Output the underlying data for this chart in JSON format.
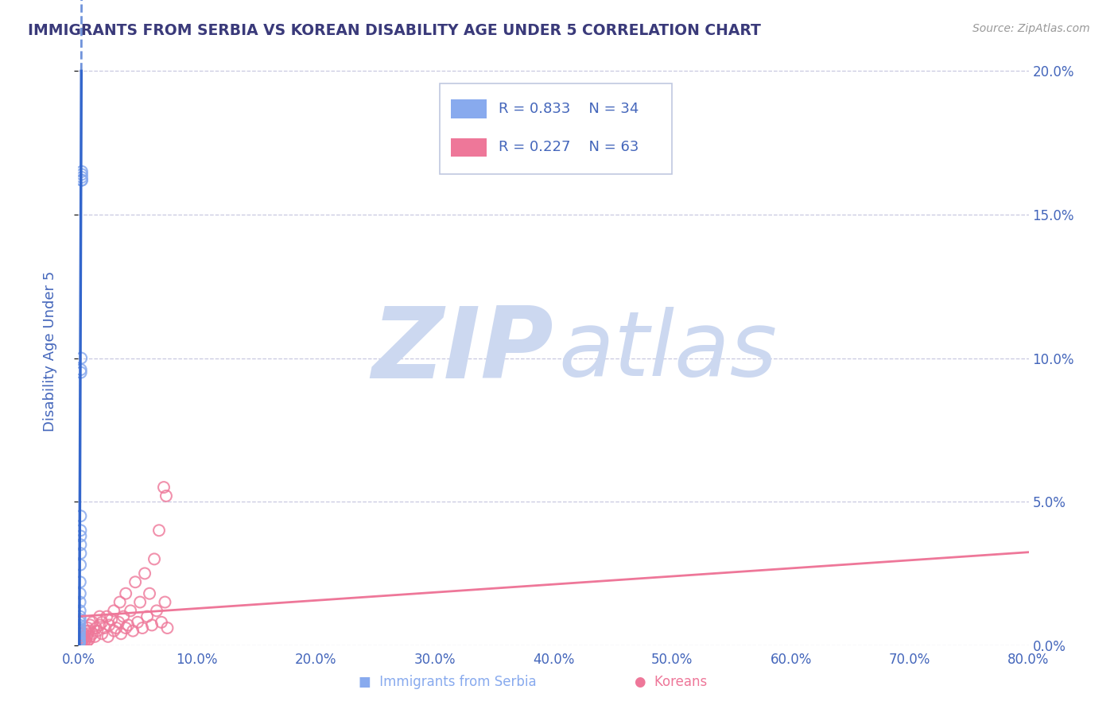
{
  "title": "IMMIGRANTS FROM SERBIA VS KOREAN DISABILITY AGE UNDER 5 CORRELATION CHART",
  "source": "Source: ZipAtlas.com",
  "ylabel": "Disability Age Under 5",
  "background_color": "#ffffff",
  "title_color": "#3a3a7a",
  "axis_color": "#4466bb",
  "grid_color": "#c8c8e0",
  "watermark_zip_color": "#ccd8f0",
  "watermark_atlas_color": "#ccd8f0",
  "serbia_R": "0.833",
  "serbia_N": "34",
  "korea_R": "0.227",
  "korea_N": "63",
  "serbia_scatter_color": "#88aaee",
  "korea_scatter_color": "#ee7799",
  "serbia_line_color": "#3366cc",
  "korea_line_color": "#ee7799",
  "legend_label_color": "#4466bb",
  "legend_bg": "#ffffff",
  "legend_border": "#c0c8e0",
  "source_color": "#999999",
  "xlim": [
    0.0,
    0.8
  ],
  "ylim": [
    0.0,
    0.205
  ],
  "xticks": [
    0.0,
    0.1,
    0.2,
    0.3,
    0.4,
    0.5,
    0.6,
    0.7,
    0.8
  ],
  "yticks": [
    0.0,
    0.05,
    0.1,
    0.15,
    0.2
  ],
  "serbia_x": [
    0.0005,
    0.0007,
    0.0007,
    0.0008,
    0.001,
    0.001,
    0.001,
    0.001,
    0.001,
    0.001,
    0.001,
    0.0012,
    0.0012,
    0.0013,
    0.0015,
    0.0015,
    0.0015,
    0.0015,
    0.0016,
    0.0016,
    0.0018,
    0.002,
    0.002,
    0.002,
    0.002,
    0.002,
    0.0022,
    0.0022,
    0.0025,
    0.003,
    0.003,
    0.003,
    0.003,
    0.003
  ],
  "serbia_y": [
    0.0005,
    0.0005,
    0.001,
    0.001,
    0.001,
    0.0015,
    0.002,
    0.003,
    0.004,
    0.005,
    0.0055,
    0.006,
    0.007,
    0.008,
    0.009,
    0.01,
    0.012,
    0.015,
    0.018,
    0.022,
    0.028,
    0.032,
    0.035,
    0.038,
    0.04,
    0.045,
    0.095,
    0.096,
    0.1,
    0.162,
    0.162,
    0.163,
    0.164,
    0.165
  ],
  "korea_x": [
    0.001,
    0.001,
    0.001,
    0.002,
    0.002,
    0.003,
    0.003,
    0.004,
    0.004,
    0.005,
    0.005,
    0.006,
    0.006,
    0.007,
    0.007,
    0.008,
    0.008,
    0.009,
    0.009,
    0.01,
    0.01,
    0.012,
    0.012,
    0.014,
    0.015,
    0.016,
    0.018,
    0.018,
    0.02,
    0.02,
    0.022,
    0.024,
    0.025,
    0.026,
    0.028,
    0.03,
    0.03,
    0.032,
    0.034,
    0.035,
    0.036,
    0.038,
    0.04,
    0.04,
    0.042,
    0.044,
    0.046,
    0.048,
    0.05,
    0.052,
    0.054,
    0.056,
    0.058,
    0.06,
    0.062,
    0.064,
    0.066,
    0.068,
    0.07,
    0.072,
    0.073,
    0.074,
    0.075
  ],
  "korea_y": [
    0.001,
    0.002,
    0.003,
    0.001,
    0.002,
    0.001,
    0.003,
    0.002,
    0.004,
    0.001,
    0.003,
    0.002,
    0.005,
    0.001,
    0.003,
    0.004,
    0.006,
    0.002,
    0.005,
    0.003,
    0.007,
    0.004,
    0.008,
    0.003,
    0.006,
    0.005,
    0.007,
    0.01,
    0.004,
    0.008,
    0.006,
    0.01,
    0.003,
    0.007,
    0.009,
    0.005,
    0.012,
    0.006,
    0.008,
    0.015,
    0.004,
    0.01,
    0.006,
    0.018,
    0.007,
    0.012,
    0.005,
    0.022,
    0.008,
    0.015,
    0.006,
    0.025,
    0.01,
    0.018,
    0.007,
    0.03,
    0.012,
    0.04,
    0.008,
    0.055,
    0.015,
    0.052,
    0.006
  ]
}
